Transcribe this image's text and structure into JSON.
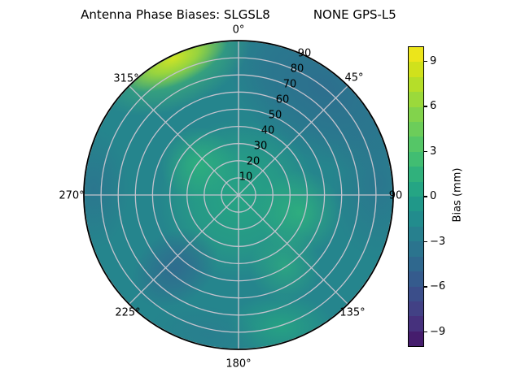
{
  "figure": {
    "title_left": "Antenna Phase Biases: SLGSL8",
    "title_right": "NONE GPS-L5"
  },
  "polar": {
    "azimuth_labels": [
      "0°",
      "45°",
      "90",
      "135°",
      "180°",
      "225°",
      "270°",
      "315°"
    ],
    "radial_labels": [
      "10",
      "20",
      "30",
      "40",
      "50",
      "60",
      "70",
      "80",
      "90"
    ],
    "grid_color": "#c3c3cd",
    "outline_color": "#000000"
  },
  "colorbar": {
    "label": "Bias (mm)",
    "tick_values": [
      9,
      6,
      3,
      0,
      -3,
      -6,
      -9
    ],
    "tick_labels": [
      "9",
      "6",
      "3",
      "0",
      "−3",
      "−6",
      "−9"
    ],
    "range": [
      -10,
      10
    ],
    "segment_colors_top_to_bottom": [
      "#ece51b",
      "#d0e11c",
      "#b5de29",
      "#9bd93b",
      "#82d34c",
      "#6ccd5a",
      "#55c667",
      "#41bd72",
      "#30b17c",
      "#25a584",
      "#209889",
      "#228c8d",
      "#27808e",
      "#2b748e",
      "#2f688e",
      "#355b8d",
      "#3b4e8a",
      "#424185",
      "#46317d",
      "#451d6d"
    ]
  },
  "palette": {
    "colormap": "viridis",
    "base_teal": "#25858d",
    "green_patch": "#30b57c",
    "dark_blue_patch": "#2e6d8e",
    "bright_rim_patch": "#cfe325",
    "grid": "#c3c3cd"
  },
  "chart_data": {
    "type": "heatmap",
    "projection": "polar",
    "title": "Antenna Phase Biases: SLGSL8    NONE GPS-L5",
    "station": "SLGSL8",
    "signal": "NONE GPS-L5",
    "colormap": "viridis",
    "value_label": "Bias (mm)",
    "value_range_mm": [
      -10,
      10
    ],
    "colorbar_ticks_mm": [
      9,
      6,
      3,
      0,
      -3,
      -6,
      -9
    ],
    "azimuth_ticks_deg": [
      0,
      45,
      90,
      135,
      180,
      225,
      270,
      315
    ],
    "radial_ticks": [
      10,
      20,
      30,
      40,
      50,
      60,
      70,
      80,
      90
    ],
    "grid": true,
    "legend_position": "right",
    "observed_regions": [
      {
        "azimuth_deg": "all",
        "radial": "0-30 (center)",
        "bias_mm": 2
      },
      {
        "azimuth_deg": "315-355",
        "radial": "70-90 (upper-left rim)",
        "bias_mm": 8
      },
      {
        "azimuth_deg": "0-95",
        "radial": "45-90 (upper-right outer)",
        "bias_mm": -2.5
      },
      {
        "azimuth_deg": "85-120",
        "radial": "20-50",
        "bias_mm": 2.5
      },
      {
        "azimuth_deg": "130-165",
        "radial": "60-90 (lower-right rim)",
        "bias_mm": 2
      },
      {
        "azimuth_deg": "200-240",
        "radial": "30-60",
        "bias_mm": -3
      },
      {
        "azimuth_deg": "255-290",
        "radial": "70-90 (left rim)",
        "bias_mm": -2
      },
      {
        "azimuth_deg": "180-215",
        "radial": "75-90 (bottom rim)",
        "bias_mm": -1.5
      },
      {
        "azimuth_deg": "elsewhere",
        "radial": "",
        "bias_mm": 0
      }
    ]
  }
}
